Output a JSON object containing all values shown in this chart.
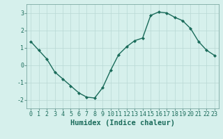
{
  "x": [
    0,
    1,
    2,
    3,
    4,
    5,
    6,
    7,
    8,
    9,
    10,
    11,
    12,
    13,
    14,
    15,
    16,
    17,
    18,
    19,
    20,
    21,
    22,
    23
  ],
  "y": [
    1.35,
    0.85,
    0.35,
    -0.4,
    -0.8,
    -1.2,
    -1.6,
    -1.85,
    -1.9,
    -1.3,
    -0.3,
    0.6,
    1.05,
    1.4,
    1.55,
    2.85,
    3.05,
    3.0,
    2.75,
    2.55,
    2.1,
    1.35,
    0.85,
    0.55
  ],
  "line_color": "#1a6b5a",
  "marker": "D",
  "marker_size": 2.0,
  "bg_color": "#d6f0ec",
  "grid_color": "#b8d8d4",
  "xlabel": "Humidex (Indice chaleur)",
  "xlim": [
    -0.5,
    23.5
  ],
  "ylim": [
    -2.5,
    3.5
  ],
  "yticks": [
    -2,
    -1,
    0,
    1,
    2,
    3
  ],
  "xticks": [
    0,
    1,
    2,
    3,
    4,
    5,
    6,
    7,
    8,
    9,
    10,
    11,
    12,
    13,
    14,
    15,
    16,
    17,
    18,
    19,
    20,
    21,
    22,
    23
  ],
  "tick_label_size": 6.0,
  "xlabel_size": 7.5,
  "spine_color": "#6a9a94",
  "line_width": 1.0
}
